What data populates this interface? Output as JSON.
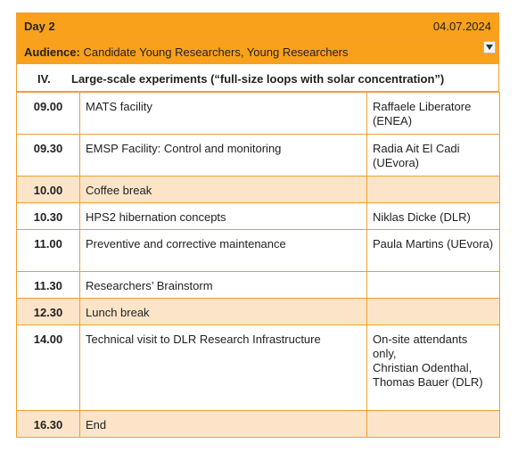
{
  "header": {
    "day": "Day 2",
    "date": "04.07.2024"
  },
  "audience": {
    "label": "Audience:",
    "value": "Candidate Young Researchers, Young Researchers"
  },
  "section": {
    "number": "IV.",
    "title": "Large-scale experiments (“full-size loops with solar concentration”)"
  },
  "rows": [
    {
      "time": "09.00",
      "activity": "MATS facility",
      "speaker": "Raffaele Liberatore (ENEA)"
    },
    {
      "time": "09.30",
      "activity": "EMSP Facility: Control and monitoring",
      "speaker": "Radia Ait El Cadi (UEvora)"
    },
    {
      "time": "10.00",
      "activity": "Coffee break"
    },
    {
      "time": "10.30",
      "activity": "HPS2 hibernation concepts",
      "speaker": "Niklas Dicke (DLR)"
    },
    {
      "time": "11.00",
      "activity": "Preventive and corrective maintenance",
      "speaker": "Paula Martins (UEvora)"
    },
    {
      "time": "11.30",
      "activity": "Researchers’ Brainstorm"
    },
    {
      "time": "12.30",
      "activity": "Lunch break"
    },
    {
      "time": "14.00",
      "activity": "Technical visit to DLR Research Infrastructure",
      "speaker": "On-site attendants only,\nChristian Odenthal,\nThomas Bauer (DLR)"
    },
    {
      "time": "16.30",
      "activity": "End"
    }
  ]
}
